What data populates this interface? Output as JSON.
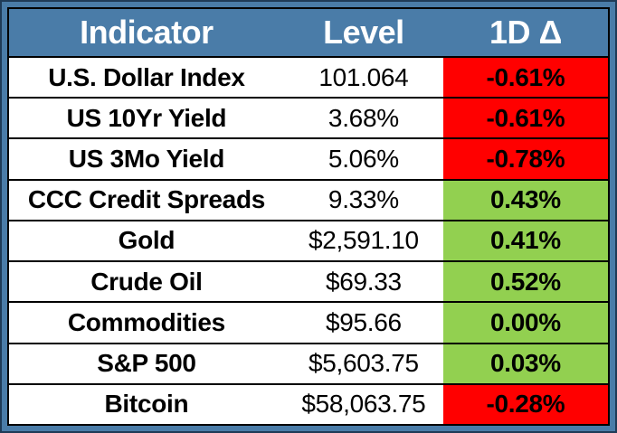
{
  "chart_data": {
    "type": "table",
    "title": "",
    "columns": [
      "Indicator",
      "Level",
      "1D Δ"
    ],
    "rows": [
      [
        "U.S. Dollar Index",
        "101.064",
        "-0.61%"
      ],
      [
        "US 10Yr Yield",
        "3.68%",
        "-0.61%"
      ],
      [
        "US 3Mo Yield",
        "5.06%",
        "-0.78%"
      ],
      [
        "CCC Credit Spreads",
        "9.33%",
        "0.43%"
      ],
      [
        "Gold",
        "$2,591.10",
        "0.41%"
      ],
      [
        "Crude Oil",
        "$69.33",
        "0.52%"
      ],
      [
        "Commodities",
        "$95.66",
        "0.00%"
      ],
      [
        "S&P 500",
        "$5,603.75",
        "0.03%"
      ],
      [
        "Bitcoin",
        "$58,063.75",
        "-0.28%"
      ]
    ],
    "conditional_formatting": "1D Δ cell is red (#FF0000) for negative change, green (#92D050) for zero or positive change"
  },
  "table": {
    "columns": [
      {
        "label": "Indicator"
      },
      {
        "label": "Level"
      },
      {
        "label": "1D Δ"
      }
    ],
    "rows": [
      {
        "indicator": "U.S. Dollar Index",
        "level": "101.064",
        "delta": "-0.61%",
        "direction": "down"
      },
      {
        "indicator": "US 10Yr Yield",
        "level": "3.68%",
        "delta": "-0.61%",
        "direction": "down"
      },
      {
        "indicator": "US 3Mo Yield",
        "level": "5.06%",
        "delta": "-0.78%",
        "direction": "down"
      },
      {
        "indicator": "CCC Credit Spreads",
        "level": "9.33%",
        "delta": "0.43%",
        "direction": "up"
      },
      {
        "indicator": "Gold",
        "level": "$2,591.10",
        "delta": "0.41%",
        "direction": "up"
      },
      {
        "indicator": "Crude Oil",
        "level": "$69.33",
        "delta": "0.52%",
        "direction": "up"
      },
      {
        "indicator": "Commodities",
        "level": "$95.66",
        "delta": "0.00%",
        "direction": "up"
      },
      {
        "indicator": "S&P 500",
        "level": "$5,603.75",
        "delta": "0.03%",
        "direction": "up"
      },
      {
        "indicator": "Bitcoin",
        "level": "$58,063.75",
        "delta": "-0.28%",
        "direction": "down"
      }
    ]
  },
  "colors": {
    "header_bg": "#4A7CA8",
    "frame": "#4A7CA8",
    "outer_edge": "#1F3B57",
    "grid": "#000000",
    "header_text": "#FFFFFF",
    "text": "#000000",
    "positive_bg": "#92D050",
    "negative_bg": "#FF0000"
  }
}
